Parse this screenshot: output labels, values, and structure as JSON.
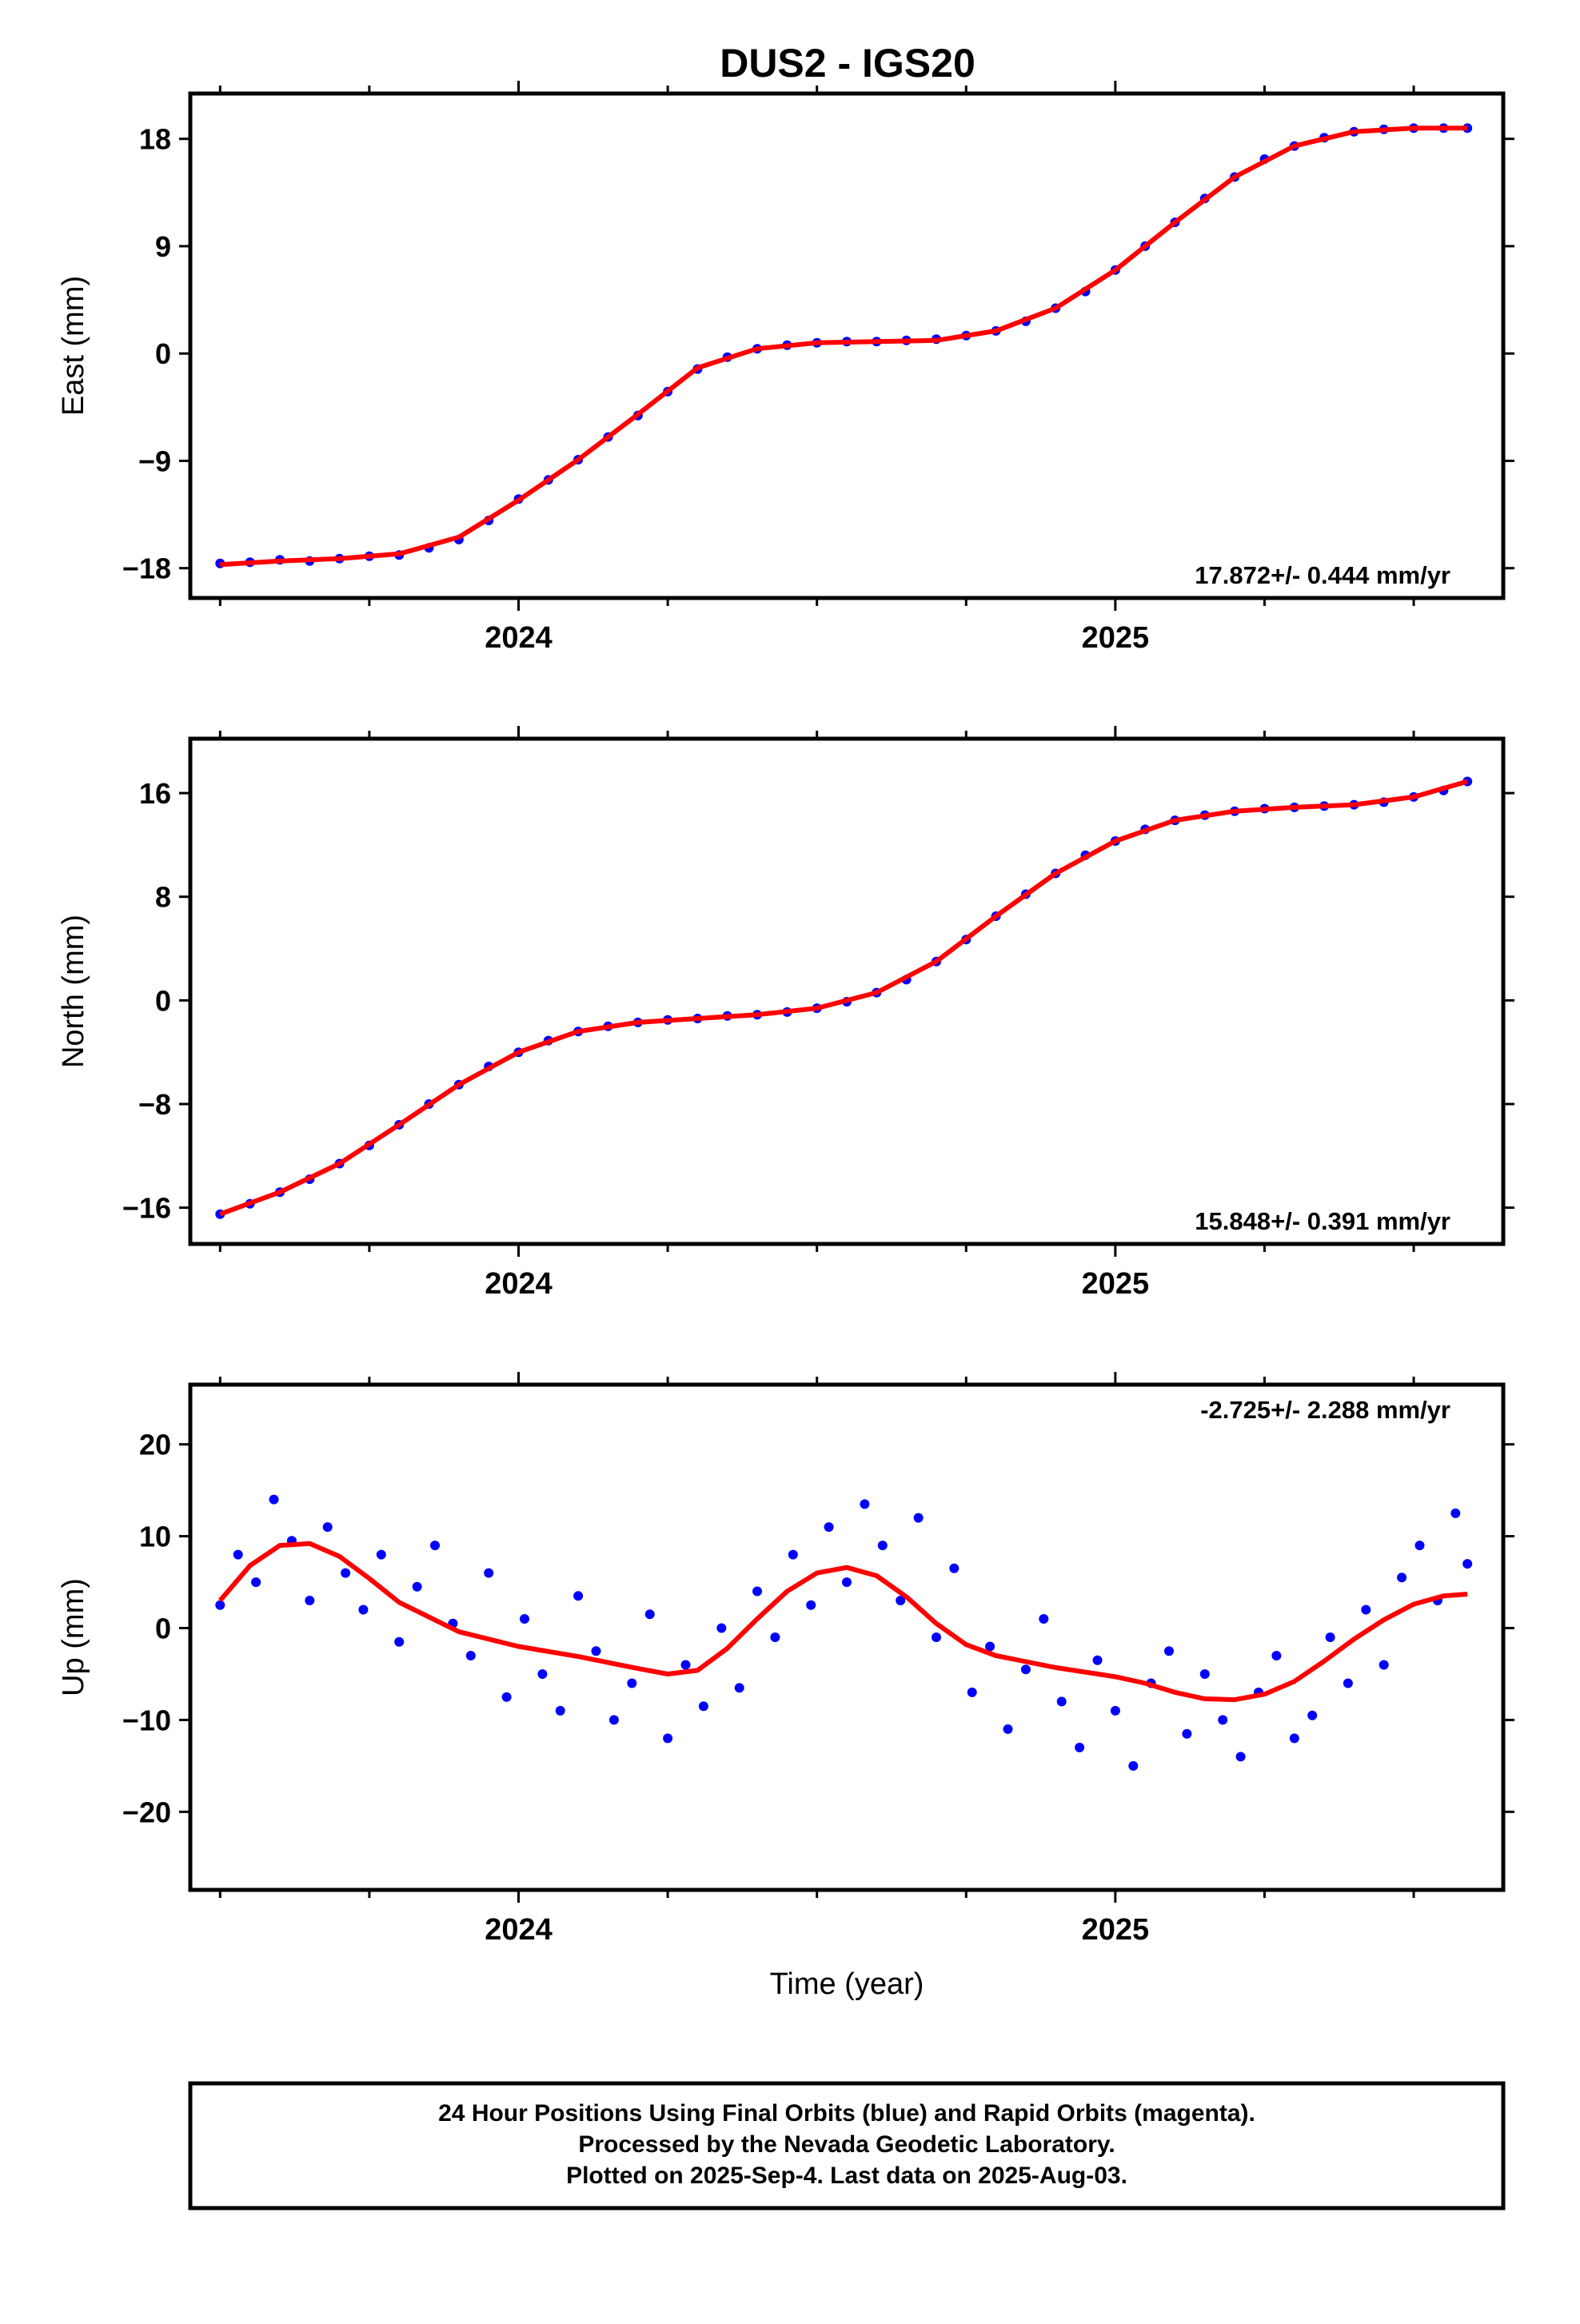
{
  "title": "DUS2 - IGS20",
  "colors": {
    "final_orbits": "#0000ff",
    "model": "#ff0000",
    "frame": "#000000"
  },
  "footer": {
    "lines": [
      "24 Hour Positions Using Final Orbits (blue) and Rapid Orbits (magenta).",
      "Processed by the Nevada Geodetic Laboratory.",
      "Plotted on 2025-Sep-4. Last data on 2025-Aug-03."
    ]
  },
  "chart_data": [
    {
      "type": "scatter",
      "name_key": "east",
      "ylabel": "East (mm)",
      "xlabel": "",
      "xlim": [
        2023.45,
        2025.65
      ],
      "ylim": [
        -20.5,
        21.8
      ],
      "yticks": [
        18,
        9,
        0,
        -9,
        -18
      ],
      "ytick_labels": [
        "18",
        "9",
        "0",
        "−9",
        "−18"
      ],
      "xticks": [
        2024,
        2025
      ],
      "xtick_labels": [
        "2024",
        "2025"
      ],
      "rate": "17.872+/- 0.444 mm/yr",
      "rate_position": "bottom-right",
      "grid": false,
      "model": {
        "x": [
          2023.5,
          2023.6,
          2023.7,
          2023.8,
          2023.9,
          2024.0,
          2024.1,
          2024.2,
          2024.3,
          2024.4,
          2024.5,
          2024.6,
          2024.7,
          2024.8,
          2024.9,
          2025.0,
          2025.1,
          2025.2,
          2025.3,
          2025.4,
          2025.5,
          2025.59
        ],
        "y": [
          -17.7,
          -17.4,
          -17.2,
          -16.8,
          -15.4,
          -12.3,
          -8.9,
          -5.1,
          -1.2,
          0.4,
          0.9,
          1.0,
          1.1,
          1.9,
          3.8,
          7.0,
          11.0,
          14.8,
          17.4,
          18.6,
          18.9,
          18.9
        ]
      },
      "points": {
        "x": [
          2023.5,
          2023.55,
          2023.6,
          2023.65,
          2023.7,
          2023.75,
          2023.8,
          2023.85,
          2023.9,
          2023.95,
          2024.0,
          2024.05,
          2024.1,
          2024.15,
          2024.2,
          2024.25,
          2024.3,
          2024.35,
          2024.4,
          2024.45,
          2024.5,
          2024.55,
          2024.6,
          2024.65,
          2024.7,
          2024.75,
          2024.8,
          2024.85,
          2024.9,
          2024.95,
          2025.0,
          2025.05,
          2025.1,
          2025.15,
          2025.2,
          2025.25,
          2025.3,
          2025.35,
          2025.4,
          2025.45,
          2025.5,
          2025.55,
          2025.59
        ],
        "y": [
          -17.6,
          -17.5,
          -17.3,
          -17.4,
          -17.2,
          -17.0,
          -16.9,
          -16.3,
          -15.6,
          -14.0,
          -12.2,
          -10.6,
          -8.9,
          -7.0,
          -5.2,
          -3.2,
          -1.3,
          -0.3,
          0.4,
          0.7,
          0.9,
          1.0,
          1.0,
          1.1,
          1.2,
          1.5,
          1.9,
          2.7,
          3.8,
          5.2,
          7.0,
          9.0,
          11.0,
          13.0,
          14.8,
          16.3,
          17.4,
          18.1,
          18.6,
          18.8,
          18.9,
          18.9,
          18.9
        ]
      }
    },
    {
      "type": "scatter",
      "name_key": "north",
      "ylabel": "North (mm)",
      "xlabel": "",
      "xlim": [
        2023.45,
        2025.65
      ],
      "ylim": [
        -18.8,
        20.2
      ],
      "yticks": [
        16,
        8,
        0,
        -8,
        -16
      ],
      "ytick_labels": [
        "16",
        "8",
        "0",
        "−8",
        "−16"
      ],
      "xticks": [
        2024,
        2025
      ],
      "xtick_labels": [
        "2024",
        "2025"
      ],
      "rate": "15.848+/- 0.391 mm/yr",
      "rate_position": "bottom-right",
      "grid": false,
      "model": {
        "x": [
          2023.5,
          2023.6,
          2023.7,
          2023.8,
          2023.9,
          2024.0,
          2024.1,
          2024.2,
          2024.3,
          2024.4,
          2024.5,
          2024.6,
          2024.7,
          2024.8,
          2024.9,
          2025.0,
          2025.1,
          2025.2,
          2025.3,
          2025.4,
          2025.5,
          2025.59
        ],
        "y": [
          -16.5,
          -14.8,
          -12.6,
          -9.6,
          -6.5,
          -4.0,
          -2.4,
          -1.7,
          -1.4,
          -1.1,
          -0.6,
          0.6,
          3.0,
          6.5,
          9.8,
          12.3,
          13.9,
          14.6,
          14.9,
          15.1,
          15.7,
          16.9
        ]
      },
      "points": {
        "x": [
          2023.5,
          2023.55,
          2023.6,
          2023.65,
          2023.7,
          2023.75,
          2023.8,
          2023.85,
          2023.9,
          2023.95,
          2024.0,
          2024.05,
          2024.1,
          2024.15,
          2024.2,
          2024.25,
          2024.3,
          2024.35,
          2024.4,
          2024.45,
          2024.5,
          2024.55,
          2024.6,
          2024.65,
          2024.7,
          2024.75,
          2024.8,
          2024.85,
          2024.9,
          2024.95,
          2025.0,
          2025.05,
          2025.1,
          2025.15,
          2025.2,
          2025.25,
          2025.3,
          2025.35,
          2025.4,
          2025.45,
          2025.5,
          2025.55,
          2025.59
        ],
        "y": [
          -16.5,
          -15.7,
          -14.8,
          -13.8,
          -12.6,
          -11.2,
          -9.6,
          -8.0,
          -6.5,
          -5.1,
          -4.0,
          -3.1,
          -2.4,
          -2.0,
          -1.7,
          -1.5,
          -1.4,
          -1.2,
          -1.1,
          -0.9,
          -0.6,
          -0.1,
          0.6,
          1.6,
          3.0,
          4.7,
          6.5,
          8.2,
          9.8,
          11.2,
          12.3,
          13.2,
          13.9,
          14.3,
          14.6,
          14.8,
          14.9,
          15.0,
          15.1,
          15.3,
          15.7,
          16.2,
          16.9
        ]
      }
    },
    {
      "type": "scatter",
      "name_key": "up",
      "ylabel": "Up (mm)",
      "xlabel": "Time (year)",
      "xlim": [
        2023.45,
        2025.65
      ],
      "ylim": [
        -28.5,
        26.5
      ],
      "yticks": [
        20,
        10,
        0,
        -10,
        -20
      ],
      "ytick_labels": [
        "20",
        "10",
        "0",
        "−10",
        "−20"
      ],
      "xticks": [
        2024,
        2025
      ],
      "xtick_labels": [
        "2024",
        "2025"
      ],
      "rate": "-2.725+/- 2.288 mm/yr",
      "rate_position": "top-right",
      "grid": false,
      "model": {
        "x": [
          2023.5,
          2023.55,
          2023.6,
          2023.65,
          2023.7,
          2023.75,
          2023.8,
          2023.9,
          2024.0,
          2024.1,
          2024.2,
          2024.25,
          2024.3,
          2024.35,
          2024.4,
          2024.45,
          2024.5,
          2024.55,
          2024.6,
          2024.65,
          2024.7,
          2024.75,
          2024.8,
          2024.9,
          2025.0,
          2025.05,
          2025.1,
          2025.15,
          2025.2,
          2025.25,
          2025.3,
          2025.35,
          2025.4,
          2025.45,
          2025.5,
          2025.55,
          2025.59
        ],
        "y": [
          3.0,
          6.8,
          9.0,
          9.2,
          7.8,
          5.4,
          2.8,
          -0.4,
          -2.0,
          -3.1,
          -4.4,
          -5.0,
          -4.6,
          -2.2,
          1.0,
          4.0,
          6.0,
          6.6,
          5.7,
          3.4,
          0.5,
          -1.8,
          -3.0,
          -4.3,
          -5.3,
          -6.0,
          -7.0,
          -7.7,
          -7.8,
          -7.2,
          -5.8,
          -3.6,
          -1.2,
          0.9,
          2.6,
          3.5,
          3.7
        ]
      },
      "points": {
        "x": [
          2023.5,
          2023.53,
          2023.56,
          2023.59,
          2023.62,
          2023.65,
          2023.68,
          2023.71,
          2023.74,
          2023.77,
          2023.8,
          2023.83,
          2023.86,
          2023.89,
          2023.92,
          2023.95,
          2023.98,
          2024.01,
          2024.04,
          2024.07,
          2024.1,
          2024.13,
          2024.16,
          2024.19,
          2024.22,
          2024.25,
          2024.28,
          2024.31,
          2024.34,
          2024.37,
          2024.4,
          2024.43,
          2024.46,
          2024.49,
          2024.52,
          2024.55,
          2024.58,
          2024.61,
          2024.64,
          2024.67,
          2024.7,
          2024.73,
          2024.76,
          2024.79,
          2024.82,
          2024.85,
          2024.88,
          2024.91,
          2024.94,
          2024.97,
          2025.0,
          2025.03,
          2025.06,
          2025.09,
          2025.12,
          2025.15,
          2025.18,
          2025.21,
          2025.24,
          2025.27,
          2025.3,
          2025.33,
          2025.36,
          2025.39,
          2025.42,
          2025.45,
          2025.48,
          2025.51,
          2025.54,
          2025.57,
          2025.59
        ],
        "y": [
          2.5,
          8.0,
          5.0,
          14.0,
          9.5,
          3.0,
          11.0,
          6.0,
          2.0,
          8.0,
          -1.5,
          4.5,
          9.0,
          0.5,
          -3.0,
          6.0,
          -7.5,
          1.0,
          -5.0,
          -9.0,
          3.5,
          -2.5,
          -10.0,
          -6.0,
          1.5,
          -12.0,
          -4.0,
          -8.5,
          0.0,
          -6.5,
          4.0,
          -1.0,
          8.0,
          2.5,
          11.0,
          5.0,
          13.5,
          9.0,
          3.0,
          12.0,
          -1.0,
          6.5,
          -7.0,
          -2.0,
          -11.0,
          -4.5,
          1.0,
          -8.0,
          -13.0,
          -3.5,
          -9.0,
          -15.0,
          -6.0,
          -2.5,
          -11.5,
          -5.0,
          -10.0,
          -14.0,
          -7.0,
          -3.0,
          -12.0,
          -9.5,
          -1.0,
          -6.0,
          2.0,
          -4.0,
          5.5,
          9.0,
          3.0,
          12.5,
          7.0
        ]
      }
    }
  ]
}
